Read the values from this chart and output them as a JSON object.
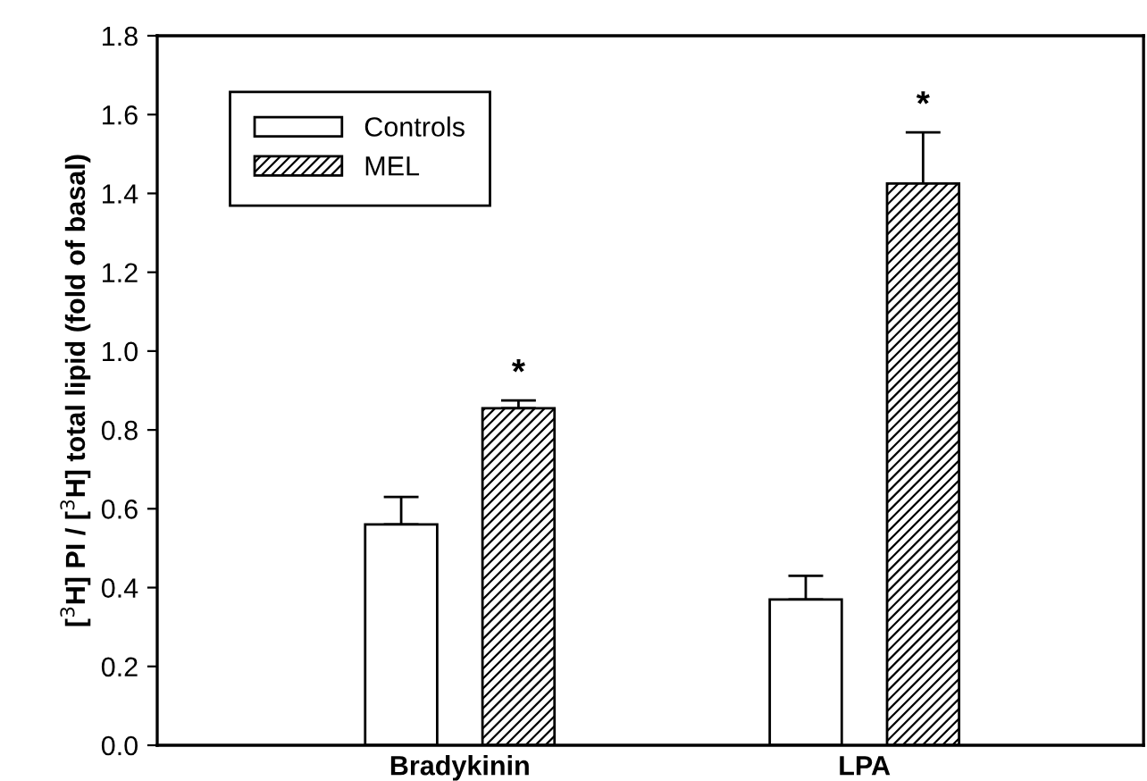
{
  "chart_data": {
    "type": "bar",
    "ylabel": "[$^{3}$H] PI / [$^{3}$H] total lipid (fold of basal)",
    "categories": [
      "Bradykinin",
      "LPA"
    ],
    "series": [
      {
        "name": "Controls",
        "color": "#ffffff",
        "values": [
          0.56,
          0.37
        ],
        "errors": [
          [
            0.56,
            0.63
          ],
          [
            0.37,
            0.43
          ]
        ]
      },
      {
        "name": "MEL",
        "color": "#000000",
        "values": [
          0.855,
          1.425
        ],
        "errors": [
          [
            0.855,
            0.875
          ],
          [
            1.425,
            1.555
          ]
        ]
      }
    ],
    "ylim": [
      0,
      1.8
    ],
    "yticks": [
      "0.0",
      0.2,
      0.4,
      0.6,
      0.8,
      "1.0",
      1.2,
      1.4,
      1.6,
      1.8
    ],
    "annotations": [
      "*",
      "*"
    ],
    "legend": "top left",
    "grid": false
  }
}
